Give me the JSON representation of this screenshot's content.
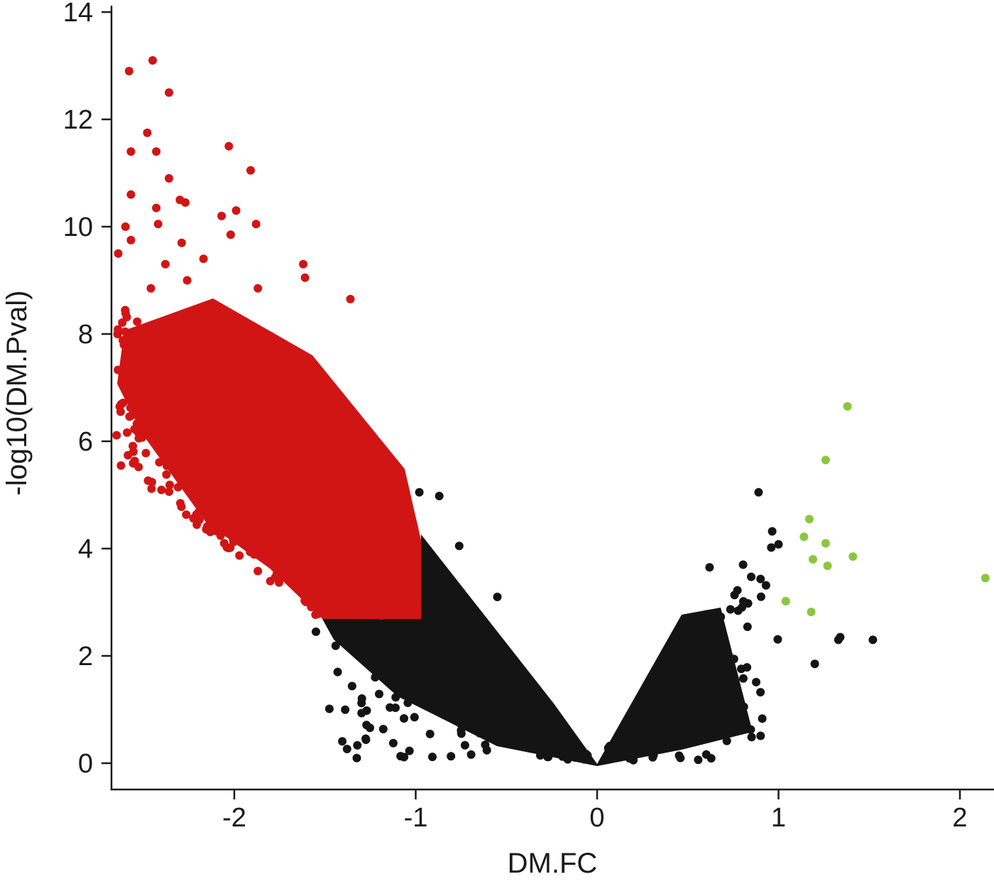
{
  "chart_data": {
    "type": "scatter",
    "title": "",
    "xlabel": "DM.FC",
    "ylabel": "-log10(DM.Pval)",
    "xlim": [
      -2.68,
      2.15
    ],
    "ylim": [
      -0.3,
      14.2
    ],
    "xticks": [
      -2,
      -1,
      0,
      1,
      2
    ],
    "yticks": [
      0,
      2,
      4,
      6,
      8,
      10,
      12,
      14
    ],
    "grid": false,
    "legend": "none",
    "colors": {
      "ns": "#141414",
      "down": "#d11515",
      "up": "#8cc63f"
    },
    "series": [
      {
        "color": "#8cc63f",
        "points": [
          [
            1.38,
            6.65
          ],
          [
            1.26,
            5.65
          ],
          [
            1.17,
            4.55
          ],
          [
            1.14,
            4.22
          ],
          [
            1.26,
            4.1
          ],
          [
            1.41,
            3.85
          ],
          [
            1.19,
            3.8
          ],
          [
            1.27,
            3.68
          ],
          [
            2.14,
            3.45
          ],
          [
            1.04,
            3.02
          ],
          [
            1.18,
            2.82
          ]
        ]
      },
      {
        "color": "#d11515",
        "points": [
          [
            -2.45,
            13.1
          ],
          [
            -2.58,
            12.9
          ],
          [
            -2.36,
            12.5
          ],
          [
            -2.48,
            11.75
          ],
          [
            -2.03,
            11.5
          ],
          [
            -2.57,
            11.4
          ],
          [
            -2.43,
            11.4
          ],
          [
            -1.91,
            11.05
          ],
          [
            -2.36,
            10.9
          ],
          [
            -2.57,
            10.6
          ],
          [
            -2.3,
            10.5
          ],
          [
            -2.27,
            10.45
          ],
          [
            -1.99,
            10.3
          ],
          [
            -2.43,
            10.35
          ],
          [
            -2.07,
            10.2
          ],
          [
            -1.88,
            10.05
          ],
          [
            -2.42,
            10.05
          ],
          [
            -2.6,
            10.0
          ],
          [
            -2.02,
            9.85
          ],
          [
            -2.57,
            9.75
          ],
          [
            -2.29,
            9.7
          ],
          [
            -2.64,
            9.5
          ],
          [
            -2.17,
            9.4
          ],
          [
            -1.62,
            9.3
          ],
          [
            -2.38,
            9.3
          ],
          [
            -1.61,
            9.05
          ],
          [
            -2.26,
            9.0
          ],
          [
            -1.36,
            8.65
          ],
          [
            -1.87,
            8.85
          ],
          [
            -2.46,
            8.85
          ]
        ]
      },
      {
        "color": "#141414",
        "points": [
          [
            0.89,
            5.05
          ],
          [
            -0.98,
            5.05
          ],
          [
            -0.87,
            4.98
          ],
          [
            -0.76,
            4.05
          ],
          [
            1.0,
            4.08
          ],
          [
            0.96,
            4.02
          ],
          [
            0.62,
            3.65
          ],
          [
            -0.55,
            3.1
          ],
          [
            1.52,
            2.3
          ],
          [
            1.34,
            2.35
          ],
          [
            1.33,
            2.3
          ],
          [
            1.2,
            1.85
          ],
          [
            -1.27,
            0.98
          ],
          [
            -1.43,
            1.7
          ],
          [
            -1.55,
            2.45
          ]
        ]
      }
    ]
  }
}
